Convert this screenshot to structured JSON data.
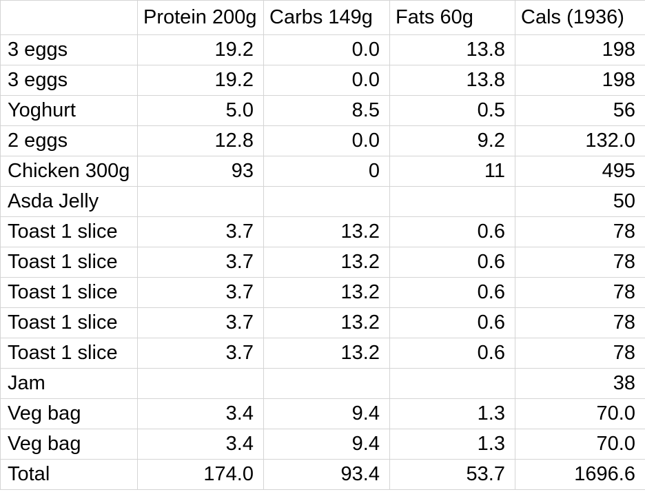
{
  "sheet": {
    "headers": [
      "",
      "Protein 200g",
      "Carbs 149g",
      "Fats 60g",
      "Cals (1936)"
    ],
    "rows": [
      {
        "item": "3 eggs",
        "protein": "19.2",
        "carbs": "0.0",
        "fats": "13.8",
        "cals": "198"
      },
      {
        "item": "3 eggs",
        "protein": "19.2",
        "carbs": "0.0",
        "fats": "13.8",
        "cals": "198"
      },
      {
        "item": "Yoghurt",
        "protein": "5.0",
        "carbs": "8.5",
        "fats": "0.5",
        "cals": "56"
      },
      {
        "item": "2 eggs",
        "protein": "12.8",
        "carbs": "0.0",
        "fats": "9.2",
        "cals": "132.0"
      },
      {
        "item": "Chicken 300g",
        "protein": "93",
        "carbs": "0",
        "fats": "11",
        "cals": "495"
      },
      {
        "item": "Asda Jelly",
        "protein": "",
        "carbs": "",
        "fats": "",
        "cals": "50"
      },
      {
        "item": "Toast 1 slice",
        "protein": "3.7",
        "carbs": "13.2",
        "fats": "0.6",
        "cals": "78"
      },
      {
        "item": "Toast 1 slice",
        "protein": "3.7",
        "carbs": "13.2",
        "fats": "0.6",
        "cals": "78"
      },
      {
        "item": "Toast 1 slice",
        "protein": "3.7",
        "carbs": "13.2",
        "fats": "0.6",
        "cals": "78"
      },
      {
        "item": "Toast 1 slice",
        "protein": "3.7",
        "carbs": "13.2",
        "fats": "0.6",
        "cals": "78"
      },
      {
        "item": "Toast 1 slice",
        "protein": "3.7",
        "carbs": "13.2",
        "fats": "0.6",
        "cals": "78"
      },
      {
        "item": "Jam",
        "protein": "",
        "carbs": "",
        "fats": "",
        "cals": "38"
      },
      {
        "item": "Veg bag",
        "protein": "3.4",
        "carbs": "9.4",
        "fats": "1.3",
        "cals": "70.0"
      },
      {
        "item": "Veg bag",
        "protein": "3.4",
        "carbs": "9.4",
        "fats": "1.3",
        "cals": "70.0"
      },
      {
        "item": "Total",
        "protein": "174.0",
        "carbs": "93.4",
        "fats": "53.7",
        "cals": "1696.6"
      }
    ]
  },
  "colors": {
    "gridline": "#d4d4d4",
    "text": "#000000",
    "background": "#ffffff"
  }
}
